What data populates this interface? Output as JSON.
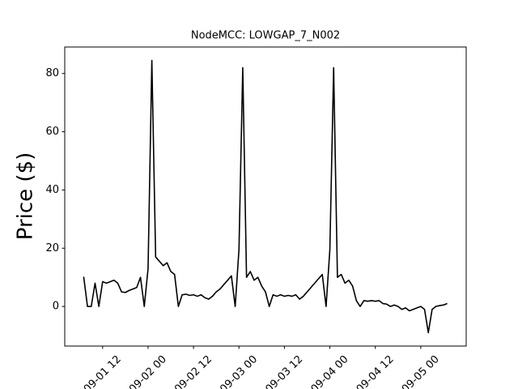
{
  "chart_data": {
    "type": "line",
    "title": "NodeMCC: LOWGAP_7_N002",
    "y_label": "Price ($)",
    "x": [
      "09-01 07",
      "09-01 08",
      "09-01 09",
      "09-01 10",
      "09-01 11",
      "09-01 12",
      "09-01 13",
      "09-01 14",
      "09-01 15",
      "09-01 16",
      "09-01 17",
      "09-01 18",
      "09-01 19",
      "09-01 20",
      "09-01 21",
      "09-01 22",
      "09-01 23",
      "09-02 00",
      "09-02 01",
      "09-02 02",
      "09-02 03",
      "09-02 04",
      "09-02 05",
      "09-02 06",
      "09-02 07",
      "09-02 08",
      "09-02 09",
      "09-02 10",
      "09-02 11",
      "09-02 12",
      "09-02 13",
      "09-02 14",
      "09-02 15",
      "09-02 16",
      "09-02 17",
      "09-02 18",
      "09-02 19",
      "09-02 20",
      "09-02 21",
      "09-02 22",
      "09-02 23",
      "09-03 00",
      "09-03 01",
      "09-03 02",
      "09-03 03",
      "09-03 04",
      "09-03 05",
      "09-03 06",
      "09-03 07",
      "09-03 08",
      "09-03 09",
      "09-03 10",
      "09-03 11",
      "09-03 12",
      "09-03 13",
      "09-03 14",
      "09-03 15",
      "09-03 16",
      "09-03 17",
      "09-03 18",
      "09-03 19",
      "09-03 20",
      "09-03 21",
      "09-03 22",
      "09-03 23",
      "09-04 00",
      "09-04 01",
      "09-04 02",
      "09-04 03",
      "09-04 04",
      "09-04 05",
      "09-04 06",
      "09-04 07",
      "09-04 08",
      "09-04 09",
      "09-04 10",
      "09-04 11",
      "09-04 12",
      "09-04 13",
      "09-04 14",
      "09-04 15",
      "09-04 16",
      "09-04 17",
      "09-04 18",
      "09-04 19",
      "09-04 20",
      "09-04 21",
      "09-04 22",
      "09-04 23",
      "09-05 00",
      "09-05 01",
      "09-05 02",
      "09-05 03",
      "09-05 04",
      "09-05 05",
      "09-05 06",
      "09-05 07"
    ],
    "series": [
      {
        "name": "NodeMCC",
        "color": "#000000",
        "values": [
          10.2,
          0,
          0,
          8,
          0,
          8.5,
          8,
          8.5,
          9,
          8,
          5,
          4.8,
          5.5,
          6,
          6.5,
          10,
          0,
          13,
          84.5,
          17,
          15.5,
          14,
          15,
          12,
          11,
          0,
          4,
          4.2,
          3.8,
          4,
          3.5,
          4,
          3,
          2.5,
          3.5,
          5,
          6,
          7.5,
          9,
          10.5,
          0,
          19.5,
          82,
          10,
          12,
          9,
          10,
          7,
          5,
          0,
          4,
          3.5,
          4,
          3.5,
          3.8,
          3.5,
          4,
          2.5,
          3.5,
          5,
          6.5,
          8,
          9.5,
          11,
          0,
          19.5,
          82,
          10,
          11,
          8,
          9,
          7,
          2,
          0,
          2,
          1.8,
          2,
          1.8,
          2,
          1,
          0.8,
          0,
          0.5,
          0,
          -1,
          -0.5,
          -1.5,
          -1,
          -0.5,
          0,
          -1,
          -9,
          -1,
          0,
          0.3,
          0.5,
          1
        ]
      }
    ],
    "xlim": [
      "09-01 02",
      "09-05 12"
    ],
    "xticks": [
      "09-01 12",
      "09-02 00",
      "09-02 12",
      "09-03 00",
      "09-03 12",
      "09-04 00",
      "09-04 12",
      "09-05 00"
    ],
    "ylim": [
      -13.6,
      89.1
    ],
    "yticks": [
      0,
      20,
      40,
      60,
      80
    ],
    "grid": false
  }
}
